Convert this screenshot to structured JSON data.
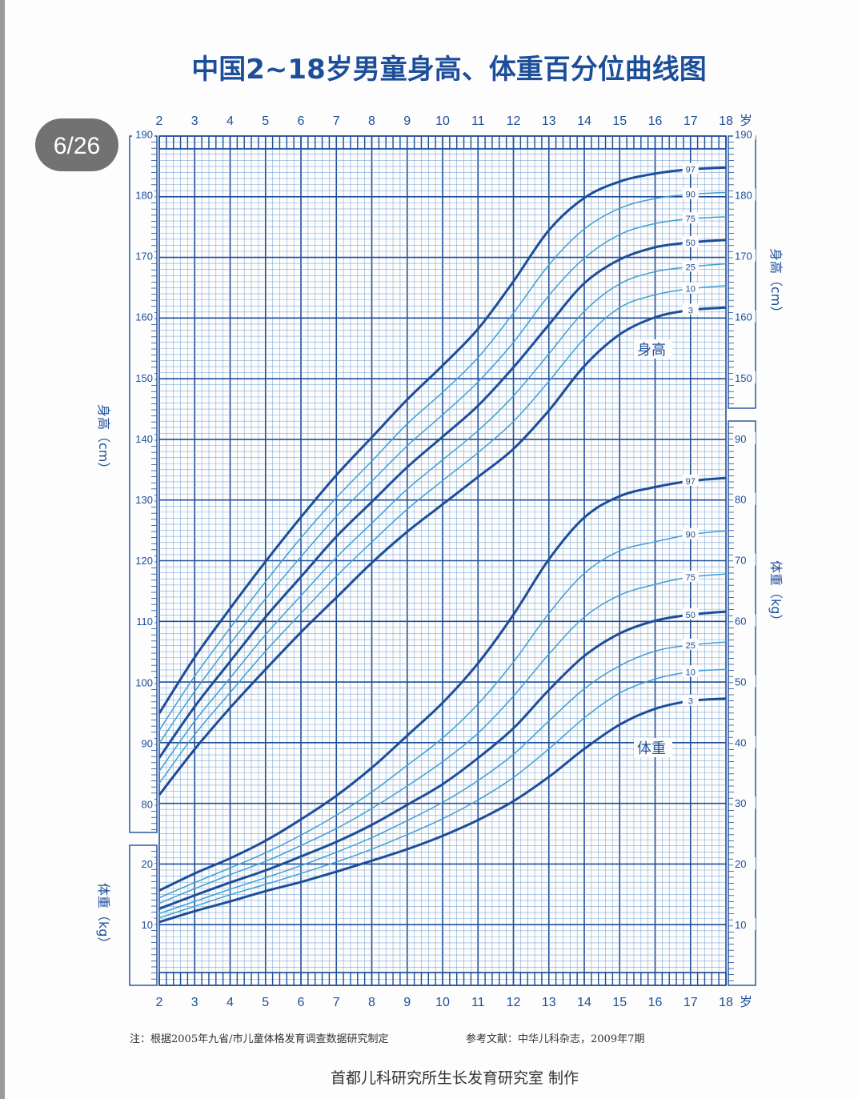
{
  "page_badge": "6/26",
  "chart_data": {
    "type": "line",
    "title": "中国2~18岁男童身高、体重百分位曲线图",
    "x_unit": "岁",
    "x_ticks": [
      "2",
      "3",
      "4",
      "5",
      "6",
      "7",
      "8",
      "9",
      "10",
      "11",
      "12",
      "13",
      "14",
      "15",
      "16",
      "17",
      "18"
    ],
    "xlim": [
      2,
      18
    ],
    "height_axis": {
      "label": "身高（cm）",
      "ylim": [
        70,
        190
      ],
      "ticks": [
        "80",
        "90",
        "100",
        "110",
        "120",
        "130",
        "140",
        "150",
        "160",
        "170",
        "180",
        "190"
      ]
    },
    "weight_axis_left": {
      "label": "体重（kg）",
      "ylim": [
        0,
        25
      ],
      "ticks": [
        "10",
        "20"
      ]
    },
    "height_axis_right": {
      "label": "身高（cm）",
      "ticks": [
        "150",
        "160",
        "170",
        "180",
        "190"
      ]
    },
    "weight_axis_right": {
      "label": "体重（kg）",
      "ylim": [
        0,
        90
      ],
      "ticks": [
        "10",
        "20",
        "30",
        "40",
        "50",
        "60",
        "70",
        "80",
        "90"
      ]
    },
    "height_panel_label": "身高",
    "weight_panel_label": "体重",
    "x": [
      2,
      3,
      4,
      5,
      6,
      7,
      8,
      9,
      10,
      11,
      12,
      13,
      14,
      15,
      16,
      17,
      18
    ],
    "height_series": [
      {
        "name": "97",
        "values": [
          94.9,
          104.1,
          112.1,
          119.8,
          127.1,
          134.0,
          140.2,
          146.4,
          152.0,
          158.0,
          165.8,
          174.2,
          179.5,
          182.2,
          183.5,
          184.2,
          184.5
        ]
      },
      {
        "name": "90",
        "values": [
          92.1,
          101.0,
          108.9,
          116.5,
          123.7,
          130.3,
          136.3,
          142.4,
          147.6,
          153.3,
          160.6,
          168.5,
          174.4,
          177.8,
          179.4,
          180.1,
          180.4
        ]
      },
      {
        "name": "75",
        "values": [
          90.0,
          98.5,
          106.3,
          113.7,
          120.6,
          127.2,
          133.0,
          138.8,
          143.9,
          149.3,
          155.8,
          163.5,
          169.6,
          173.5,
          175.3,
          176.1,
          176.4
        ]
      },
      {
        "name": "50",
        "values": [
          87.6,
          96.0,
          103.4,
          110.7,
          117.3,
          123.9,
          129.6,
          135.3,
          140.3,
          145.4,
          151.7,
          158.7,
          165.5,
          169.4,
          171.4,
          172.2,
          172.6
        ]
      },
      {
        "name": "25",
        "values": [
          85.4,
          93.6,
          100.7,
          107.8,
          114.2,
          120.5,
          126.1,
          131.7,
          136.5,
          141.3,
          147.0,
          153.9,
          160.9,
          165.4,
          167.4,
          168.2,
          168.7
        ]
      },
      {
        "name": "10",
        "values": [
          83.4,
          91.4,
          98.3,
          105.1,
          111.3,
          117.4,
          123.0,
          128.4,
          133.1,
          137.7,
          142.8,
          149.4,
          156.4,
          161.5,
          163.6,
          164.6,
          165.1
        ]
      },
      {
        "name": "3",
        "values": [
          81.5,
          89.0,
          95.8,
          102.1,
          108.2,
          113.9,
          119.6,
          124.7,
          129.2,
          133.7,
          138.3,
          144.6,
          151.9,
          157.1,
          159.9,
          161.1,
          161.5
        ]
      }
    ],
    "weight_series": [
      {
        "name": "97",
        "values": [
          15.6,
          18.4,
          20.9,
          23.8,
          27.3,
          31.2,
          35.8,
          41.1,
          46.5,
          53.0,
          61.0,
          70.1,
          77.0,
          80.5,
          82.0,
          83.0,
          83.5
        ]
      },
      {
        "name": "90",
        "values": [
          14.4,
          16.9,
          19.3,
          21.8,
          24.7,
          28.0,
          31.8,
          36.2,
          40.7,
          46.3,
          53.2,
          61.2,
          67.8,
          71.5,
          73.0,
          74.2,
          74.8
        ]
      },
      {
        "name": "75",
        "values": [
          13.5,
          15.9,
          18.2,
          20.4,
          23.0,
          25.8,
          29.1,
          32.8,
          36.8,
          41.5,
          47.6,
          54.5,
          60.6,
          64.2,
          66.0,
          67.2,
          67.7
        ]
      },
      {
        "name": "50",
        "values": [
          12.6,
          14.8,
          16.9,
          18.9,
          21.2,
          23.6,
          26.4,
          29.7,
          33.1,
          37.4,
          42.3,
          48.6,
          54.2,
          57.9,
          60.0,
          61.0,
          61.5
        ]
      },
      {
        "name": "25",
        "values": [
          11.8,
          13.8,
          15.8,
          17.7,
          19.7,
          21.9,
          24.3,
          27.1,
          30.1,
          33.7,
          38.0,
          43.5,
          48.8,
          52.6,
          55.0,
          56.0,
          56.5
        ]
      },
      {
        "name": "10",
        "values": [
          11.1,
          13.0,
          14.9,
          16.6,
          18.4,
          20.3,
          22.4,
          24.8,
          27.4,
          30.5,
          34.2,
          38.9,
          44.0,
          48.1,
          50.4,
          51.6,
          52.0
        ]
      },
      {
        "name": "3",
        "values": [
          10.4,
          12.2,
          13.8,
          15.5,
          17.0,
          18.7,
          20.5,
          22.4,
          24.6,
          27.2,
          30.3,
          34.3,
          38.9,
          42.9,
          45.5,
          46.8,
          47.2
        ]
      }
    ]
  },
  "note_left": "注：根据2005年九省/市儿童体格发育调查数据研究制定",
  "note_right": "参考文献：中华儿科杂志，2009年7期",
  "footer": "首都儿科研究所生长发育研究室  制作",
  "colors": {
    "main": "#1d4e9a",
    "light": "#3f9fd4",
    "minor_grid": "#5b8fc8",
    "badge": "#666666"
  }
}
